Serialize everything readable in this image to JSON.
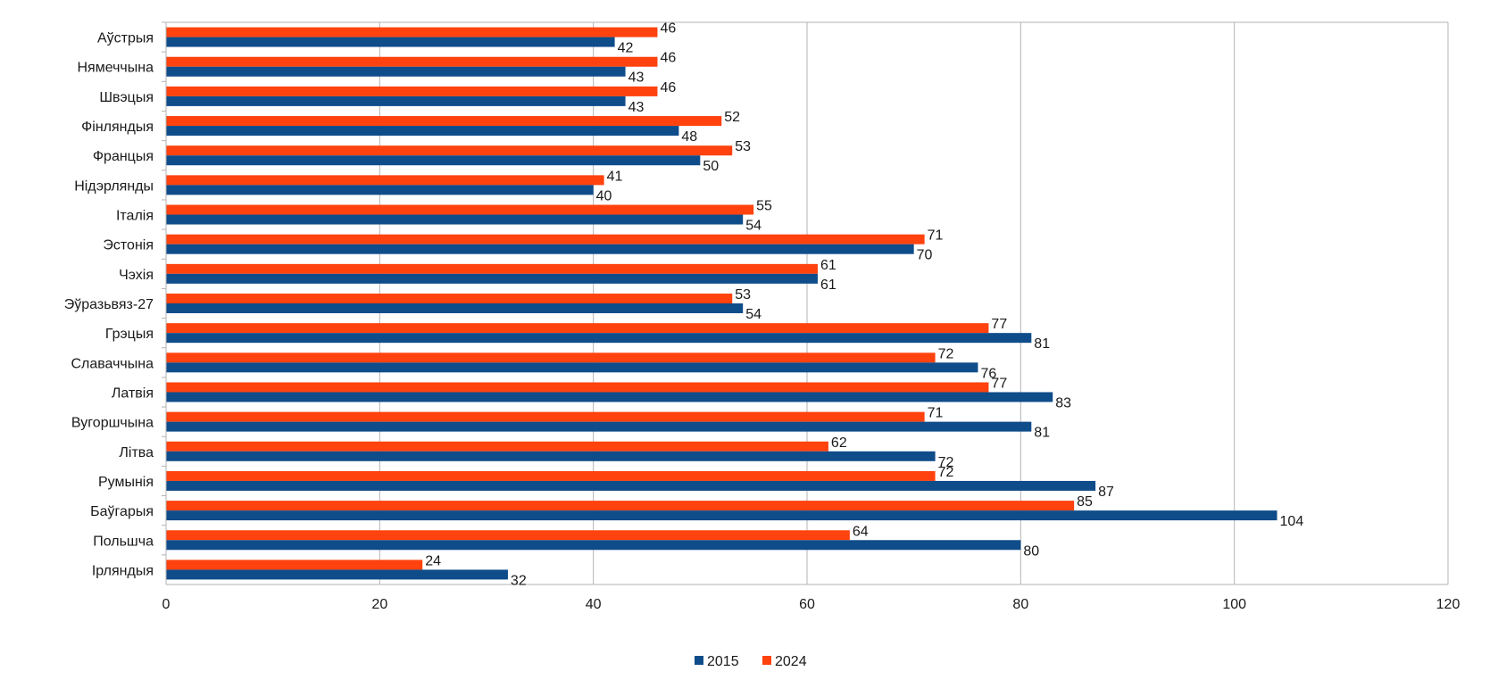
{
  "chart_data": {
    "type": "bar",
    "orientation": "horizontal",
    "categories": [
      "Аўстрыя",
      "Нямеччына",
      "Швэцыя",
      "Фінляндыя",
      "Францыя",
      "Нідэрлянды",
      "Італія",
      "Эстонія",
      "Чэхія",
      "Эўразьвяз-27",
      "Грэцыя",
      "Славаччына",
      "Латвія",
      "Вугоршчына",
      "Літва",
      "Румынія",
      "Баўгарыя",
      "Польшча",
      "Ірляндыя"
    ],
    "series": [
      {
        "name": "2015",
        "color": "#0f4c8a",
        "values": [
          42,
          43,
          43,
          48,
          50,
          40,
          54,
          70,
          61,
          54,
          81,
          76,
          83,
          81,
          72,
          87,
          104,
          80,
          32
        ]
      },
      {
        "name": "2024",
        "color": "#ff420e",
        "values": [
          46,
          46,
          46,
          52,
          53,
          41,
          55,
          71,
          61,
          53,
          77,
          72,
          77,
          71,
          62,
          72,
          85,
          64,
          24
        ]
      }
    ],
    "xlim": [
      0,
      120
    ],
    "xticks": [
      0,
      20,
      40,
      60,
      80,
      100,
      120
    ],
    "grid": true,
    "legend_position": "bottom-center",
    "title": "",
    "xlabel": "",
    "ylabel": ""
  }
}
